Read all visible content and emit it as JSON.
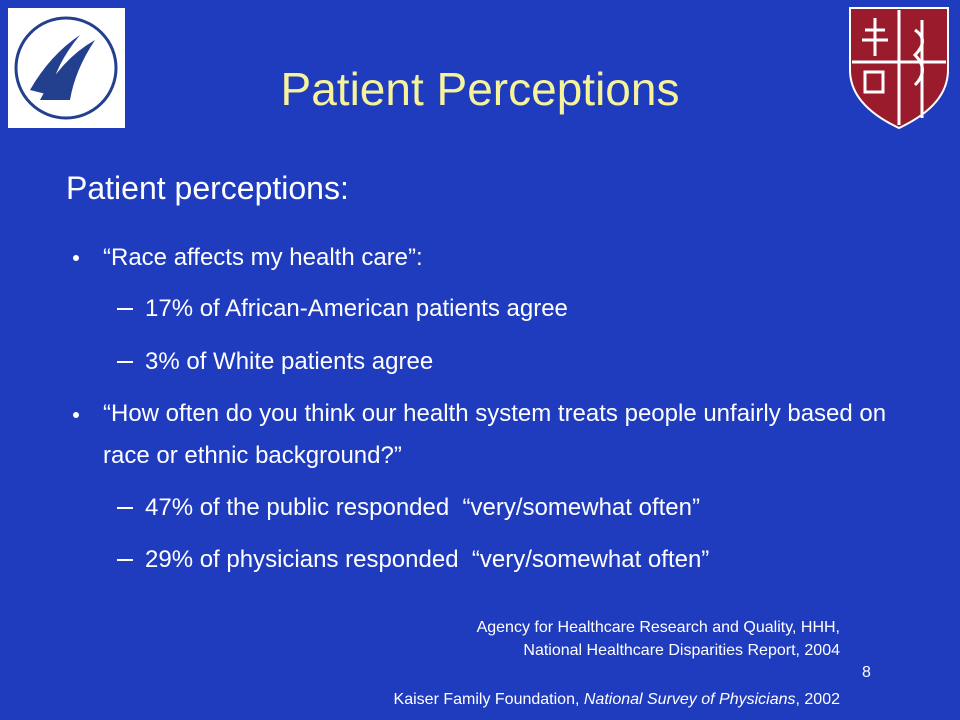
{
  "slide": {
    "title": "Patient Perceptions",
    "subtitle": "Patient perceptions:",
    "bullets": [
      {
        "text": "“Race affects my health care”:",
        "items": [
          "17% of African-American patients agree",
          "3% of White patients agree"
        ]
      },
      {
        "text": "“How often do you think our health system treats people unfairly based on race or ethnic background?”",
        "items": [
          "47% of the public responded  “very/somewhat often”",
          "29% of physicians responded  “very/somewhat often”"
        ]
      }
    ],
    "citations": [
      {
        "lines": [
          "Agency for Healthcare Research and Quality, HHH,",
          "National Healthcare Disparities Report, 2004"
        ]
      },
      {
        "parts": [
          "Kaiser Family Foundation, ",
          "National Survey of Physicians",
          ", 2002"
        ]
      }
    ],
    "page_number": "8"
  }
}
